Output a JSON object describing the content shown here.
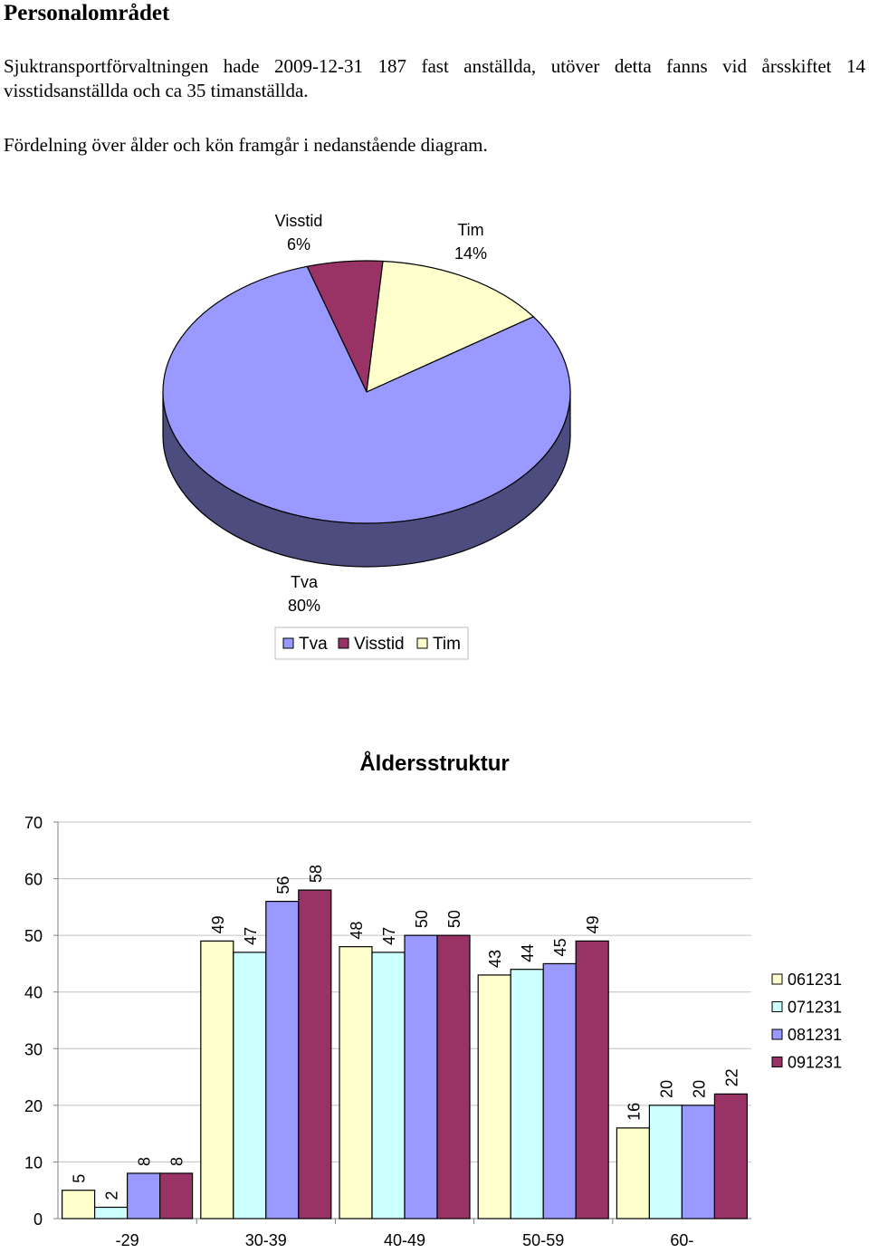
{
  "document": {
    "heading": "Personalområdet",
    "paragraph1": "Sjuktransportförvaltningen hade 2009-12-31 187 fast anställda, utöver detta fanns vid årsskiftet 14 visstidsanställda och ca 35 timanställda.",
    "paragraph2": "Fördelning över ålder och kön framgår i nedanstående diagram."
  },
  "chart_data": [
    {
      "type": "pie",
      "title": "",
      "style": "3d",
      "slices": [
        {
          "name": "Tva",
          "value": 80,
          "label": "80%",
          "color": "#9999FF",
          "side_color": "#4C4C7F"
        },
        {
          "name": "Visstid",
          "value": 6,
          "label": "6%",
          "color": "#993366",
          "side_color": "#4C1933"
        },
        {
          "name": "Tim",
          "value": 14,
          "label": "14%",
          "color": "#FFFFCC",
          "side_color": "#7F7F66"
        }
      ],
      "legend": {
        "placement": "bottom",
        "entries": [
          "Tva",
          "Visstid",
          "Tim"
        ]
      }
    },
    {
      "type": "bar",
      "title": "Åldersstruktur",
      "xlabel": "",
      "ylabel": "",
      "categories": [
        "-29",
        "30-39",
        "40-49",
        "50-59",
        "60-"
      ],
      "series": [
        {
          "name": "061231",
          "values": [
            5,
            49,
            48,
            43,
            16
          ],
          "color": "#FFFFCC"
        },
        {
          "name": "071231",
          "values": [
            2,
            47,
            47,
            44,
            20
          ],
          "color": "#CCFFFF"
        },
        {
          "name": "081231",
          "values": [
            8,
            56,
            50,
            45,
            20
          ],
          "color": "#9999FF"
        },
        {
          "name": "091231",
          "values": [
            8,
            58,
            50,
            49,
            22
          ],
          "color": "#993366"
        }
      ],
      "ylim": [
        0,
        70
      ],
      "yticks": [
        0,
        10,
        20,
        30,
        40,
        50,
        60,
        70
      ],
      "grid": true,
      "data_labels": "rotated",
      "legend": {
        "placement": "right"
      }
    }
  ]
}
